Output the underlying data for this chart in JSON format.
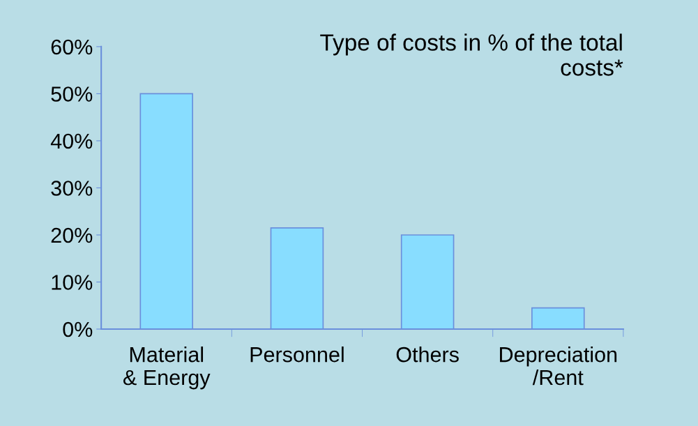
{
  "chart_data": {
    "type": "bar",
    "title": "Type of costs in % of the total\ncosts*",
    "categories": [
      "Material\n& Energy",
      "Personnel",
      "Others",
      "Depreciation\n/Rent"
    ],
    "values": [
      50,
      21.5,
      20,
      4.5
    ],
    "color": "#88ddff",
    "ylim": [
      0,
      60
    ],
    "yticks": [
      {
        "value": 0,
        "label": "0%"
      },
      {
        "value": 10,
        "label": "10%"
      },
      {
        "value": 20,
        "label": "20%"
      },
      {
        "value": 30,
        "label": "30%"
      },
      {
        "value": 40,
        "label": "40%"
      },
      {
        "value": 50,
        "label": "50%"
      },
      {
        "value": 60,
        "label": "60%"
      }
    ],
    "grid": false
  }
}
